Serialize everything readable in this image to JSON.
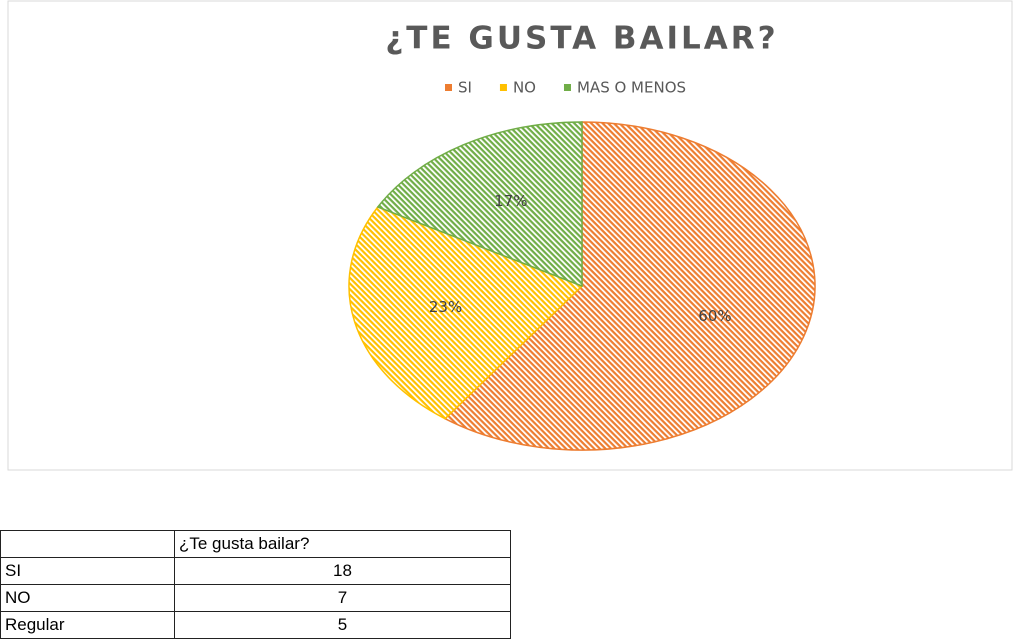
{
  "chart_data": {
    "type": "pie",
    "title": "¿TE GUSTA BAILAR?",
    "categories": [
      "SI",
      "NO",
      "MAS O MENOS"
    ],
    "values": [
      60,
      23,
      17
    ],
    "value_labels": [
      "60%",
      "23%",
      "17%"
    ],
    "colors": [
      "#ed7d31",
      "#ffc000",
      "#70ad47"
    ],
    "legend": "top"
  },
  "table": {
    "header": [
      "",
      "¿Te gusta bailar?"
    ],
    "rows": [
      [
        "SI",
        18
      ],
      [
        "NO",
        7
      ],
      [
        "Regular",
        5
      ]
    ]
  }
}
